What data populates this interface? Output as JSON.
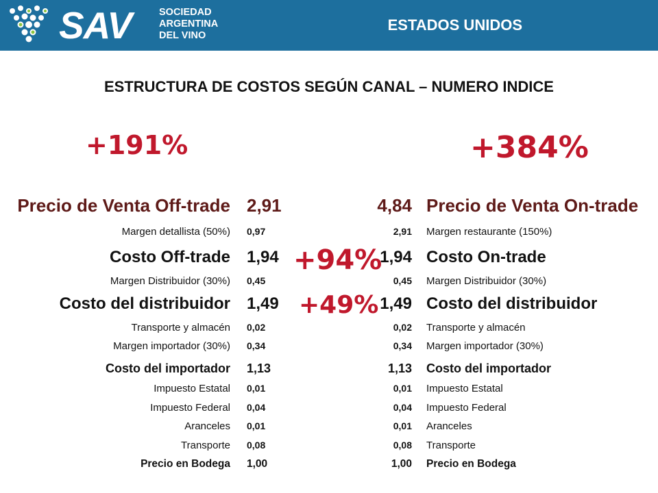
{
  "header": {
    "logo_main": "SAV",
    "logo_sub": [
      "SOCIEDAD",
      "ARGENTINA",
      "DEL VINO"
    ],
    "country": "ESTADOS UNIDOS",
    "bg_color": "#1d6f9e"
  },
  "title": "ESTRUCTURA DE COSTOS SEGÚN CANAL – NUMERO INDICE",
  "percentages": {
    "off_trade_total": "+191%",
    "on_trade_total": "+384%",
    "costo_trade": "+94%",
    "costo_distribuidor": "+49%",
    "color": "#c0182c"
  },
  "rows": [
    {
      "left_label": "Precio de Venta Off-trade",
      "left_value": "2,91",
      "right_value": "4,84",
      "right_label": "Precio de Venta On-trade"
    },
    {
      "left_label": "Margen detallista (50%)",
      "left_value": "0,97",
      "right_value": "2,91",
      "right_label": "Margen restaurante (150%)"
    },
    {
      "left_label": "Costo Off-trade",
      "left_value": "1,94",
      "right_value": "1,94",
      "right_label": "Costo On-trade"
    },
    {
      "left_label": "Margen Distribuidor (30%)",
      "left_value": "0,45",
      "right_value": "0,45",
      "right_label": "Margen Distribuidor (30%)"
    },
    {
      "left_label": "Costo del distribuidor",
      "left_value": "1,49",
      "right_value": "1,49",
      "right_label": "Costo del distribuidor"
    },
    {
      "left_label": "Transporte y almacén",
      "left_value": "0,02",
      "right_value": "0,02",
      "right_label": "Transporte y almacén"
    },
    {
      "left_label": "Margen importador (30%)",
      "left_value": "0,34",
      "right_value": "0,34",
      "right_label": "Margen importador (30%)"
    },
    {
      "left_label": "Costo del importador",
      "left_value": "1,13",
      "right_value": "1,13",
      "right_label": "Costo del importador"
    },
    {
      "left_label": "Impuesto Estatal",
      "left_value": "0,01",
      "right_value": "0,01",
      "right_label": "Impuesto Estatal"
    },
    {
      "left_label": "Impuesto Federal",
      "left_value": "0,04",
      "right_value": "0,04",
      "right_label": "Impuesto Federal"
    },
    {
      "left_label": "Aranceles",
      "left_value": "0,01",
      "right_value": "0,01",
      "right_label": "Aranceles"
    },
    {
      "left_label": "Transporte",
      "left_value": "0,08",
      "right_value": "0,08",
      "right_label": "Transporte"
    },
    {
      "left_label": "Precio en Bodega",
      "left_value": "1,00",
      "right_value": "1,00",
      "right_label": "Precio en Bodega"
    }
  ]
}
